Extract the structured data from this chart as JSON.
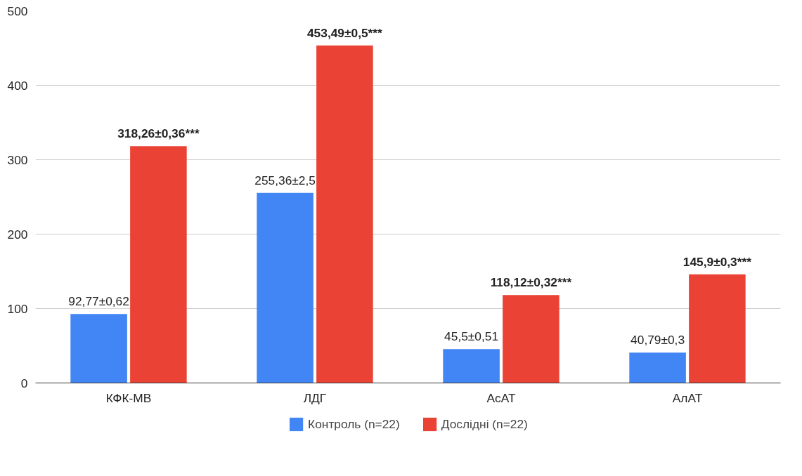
{
  "chart_data": {
    "type": "bar",
    "categories": [
      "КФК-МВ",
      "ЛДГ",
      "АсАТ",
      "АлАТ"
    ],
    "series": [
      {
        "name": "Контроль (n=22)",
        "color": "#4285f4",
        "values": [
          92.77,
          255.36,
          45.5,
          40.79
        ],
        "value_labels": [
          "92,77±0,62",
          "255,36±2,5",
          "45,5±0,51",
          "40,79±0,3"
        ]
      },
      {
        "name": "Дослідні (n=22)",
        "color": "#ea4335",
        "values": [
          318.26,
          453.49,
          118.12,
          145.9
        ],
        "value_labels": [
          "318,26±0,36***",
          "453,49±0,5***",
          "118,12±0,32***",
          "145,9±0,3***"
        ]
      }
    ],
    "ylim": [
      0,
      500
    ],
    "yticks": [
      0,
      100,
      200,
      300,
      400,
      500
    ],
    "grid": "y",
    "legend": "bottom"
  }
}
